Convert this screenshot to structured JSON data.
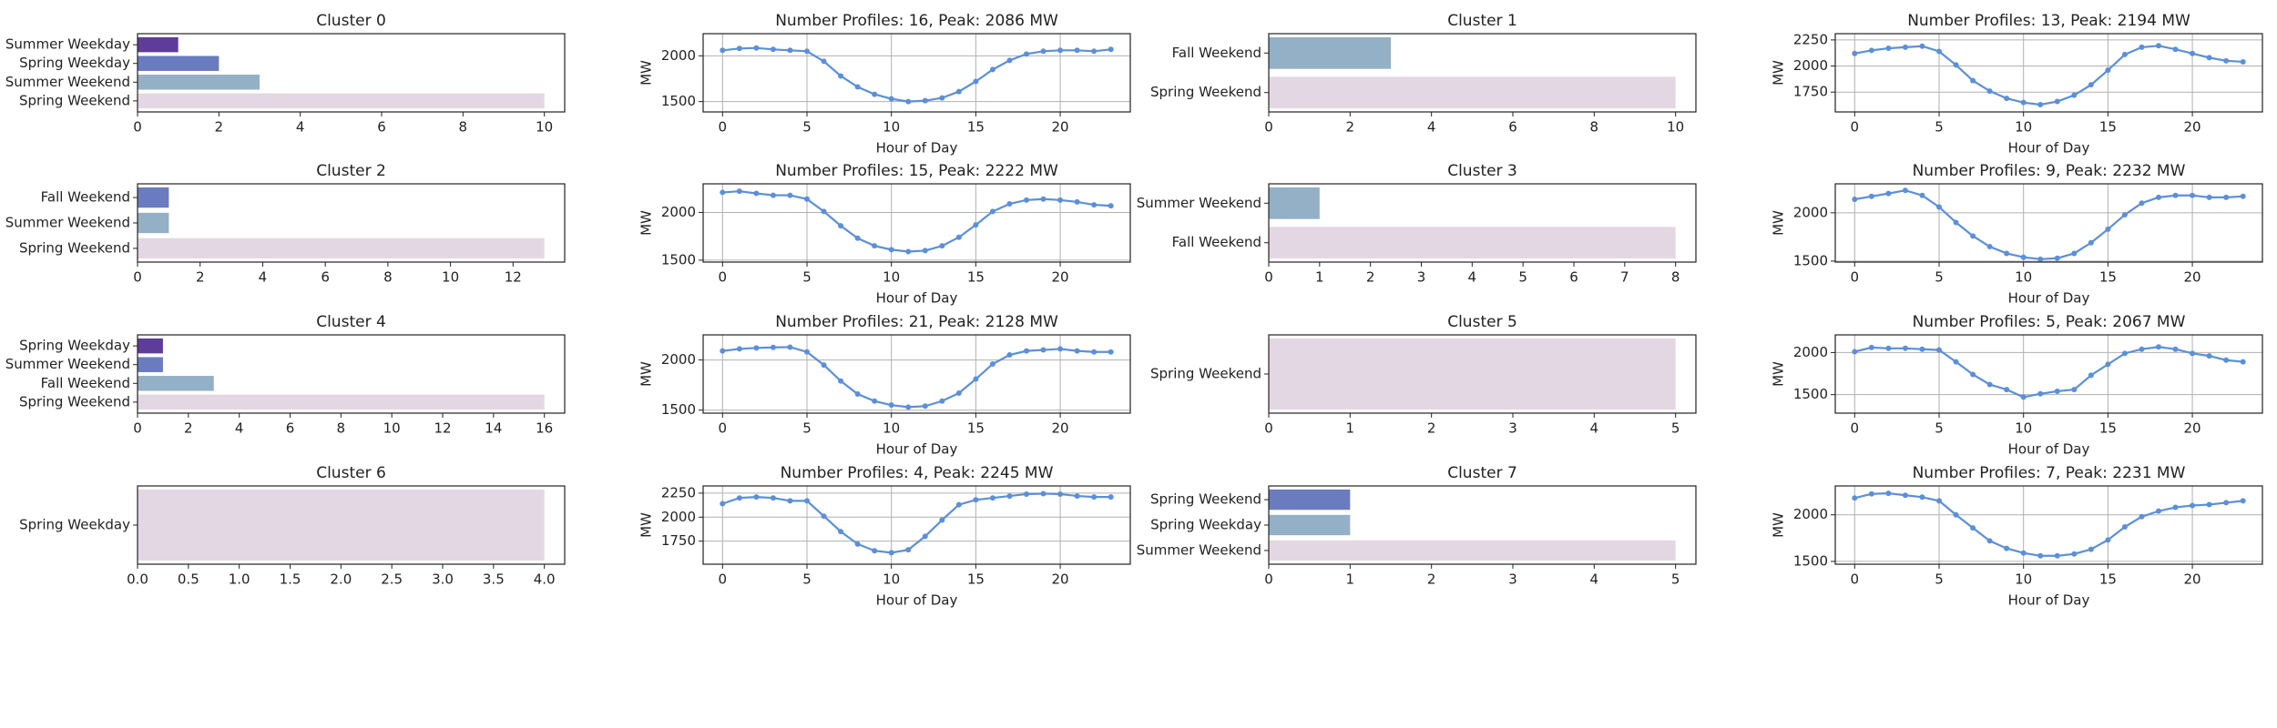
{
  "chart_data": [
    {
      "type": "bar",
      "title": "Cluster 0",
      "categories": [
        "Summer Weekday",
        "Spring Weekday",
        "Summer Weekend",
        "Spring Weekend"
      ],
      "values": [
        1,
        2,
        3,
        10
      ],
      "colors": [
        "#5e3c99",
        "#6a7bbf",
        "#93b0c6",
        "#e3d7e3"
      ],
      "xlim": [
        0,
        10.5
      ],
      "xticks": [
        0,
        2,
        4,
        6,
        8,
        10
      ]
    },
    {
      "type": "line",
      "title": "Number Profiles: 16, Peak: 2086 MW",
      "x": [
        0,
        1,
        2,
        3,
        4,
        5,
        6,
        7,
        8,
        9,
        10,
        11,
        12,
        13,
        14,
        15,
        16,
        17,
        18,
        19,
        20,
        21,
        22,
        23
      ],
      "values": [
        2060,
        2080,
        2086,
        2070,
        2060,
        2050,
        1940,
        1780,
        1660,
        1580,
        1530,
        1500,
        1510,
        1540,
        1610,
        1720,
        1850,
        1950,
        2020,
        2050,
        2060,
        2060,
        2050,
        2070
      ],
      "color": "#5b8fd9",
      "xlim": [
        -1.15,
        24.15
      ],
      "xticks": [
        0,
        5,
        10,
        15,
        20
      ],
      "ylim": [
        1387,
        2242
      ],
      "yticks": [
        1500,
        2000
      ],
      "xlabel": "Hour of Day",
      "ylabel": "MW",
      "grid": true
    },
    {
      "type": "bar",
      "title": "Cluster 1",
      "categories": [
        "Fall Weekend",
        "Spring Weekend"
      ],
      "values": [
        3,
        10
      ],
      "colors": [
        "#93b0c6",
        "#e3d7e3"
      ],
      "xlim": [
        0,
        10.5
      ],
      "xticks": [
        0,
        2,
        4,
        6,
        8,
        10
      ]
    },
    {
      "type": "line",
      "title": "Number Profiles: 13, Peak: 2194 MW",
      "x": [
        0,
        1,
        2,
        3,
        4,
        5,
        6,
        7,
        8,
        9,
        10,
        11,
        12,
        13,
        14,
        15,
        16,
        17,
        18,
        19,
        20,
        21,
        22,
        23
      ],
      "values": [
        2120,
        2150,
        2170,
        2180,
        2190,
        2140,
        2010,
        1860,
        1760,
        1690,
        1650,
        1630,
        1660,
        1720,
        1820,
        1960,
        2110,
        2180,
        2194,
        2160,
        2120,
        2080,
        2050,
        2040
      ],
      "color": "#5b8fd9",
      "xlim": [
        -1.15,
        24.15
      ],
      "xticks": [
        0,
        5,
        10,
        15,
        20
      ],
      "ylim": [
        1560,
        2310
      ],
      "yticks": [
        1750,
        2000,
        2250
      ],
      "xlabel": "Hour of Day",
      "ylabel": "MW",
      "grid": true
    },
    {
      "type": "bar",
      "title": "Cluster 2",
      "categories": [
        "Fall Weekend",
        "Summer Weekend",
        "Spring Weekend"
      ],
      "values": [
        1,
        1,
        13
      ],
      "colors": [
        "#6a7bbf",
        "#93b0c6",
        "#e3d7e3"
      ],
      "xlim": [
        0,
        13.65
      ],
      "xticks": [
        0,
        2,
        4,
        6,
        8,
        10,
        12
      ]
    },
    {
      "type": "line",
      "title": "Number Profiles: 15, Peak: 2222 MW",
      "x": [
        0,
        1,
        2,
        3,
        4,
        5,
        6,
        7,
        8,
        9,
        10,
        11,
        12,
        13,
        14,
        15,
        16,
        17,
        18,
        19,
        20,
        21,
        22,
        23
      ],
      "values": [
        2210,
        2222,
        2200,
        2180,
        2180,
        2140,
        2010,
        1860,
        1730,
        1650,
        1610,
        1590,
        1600,
        1650,
        1740,
        1870,
        2010,
        2090,
        2130,
        2140,
        2130,
        2110,
        2080,
        2070
      ],
      "color": "#5b8fd9",
      "xlim": [
        -1.15,
        24.15
      ],
      "xticks": [
        0,
        5,
        10,
        15,
        20
      ],
      "ylim": [
        1480,
        2300
      ],
      "yticks": [
        1500,
        2000
      ],
      "xlabel": "Hour of Day",
      "ylabel": "MW",
      "grid": true
    },
    {
      "type": "bar",
      "title": "Cluster 3",
      "categories": [
        "Summer Weekend",
        "Fall Weekend"
      ],
      "values": [
        1,
        8
      ],
      "colors": [
        "#93b0c6",
        "#e3d7e3"
      ],
      "xlim": [
        0,
        8.4
      ],
      "xticks": [
        0,
        1,
        2,
        3,
        4,
        5,
        6,
        7,
        8
      ]
    },
    {
      "type": "line",
      "title": "Number Profiles: 9, Peak: 2232 MW",
      "x": [
        0,
        1,
        2,
        3,
        4,
        5,
        6,
        7,
        8,
        9,
        10,
        11,
        12,
        13,
        14,
        15,
        16,
        17,
        18,
        19,
        20,
        21,
        22,
        23
      ],
      "values": [
        2140,
        2170,
        2200,
        2232,
        2180,
        2060,
        1900,
        1760,
        1650,
        1580,
        1540,
        1520,
        1530,
        1580,
        1690,
        1830,
        1980,
        2100,
        2160,
        2180,
        2180,
        2160,
        2160,
        2170
      ],
      "color": "#5b8fd9",
      "xlim": [
        -1.15,
        24.15
      ],
      "xticks": [
        0,
        5,
        10,
        15,
        20
      ],
      "ylim": [
        1490,
        2300
      ],
      "yticks": [
        1500,
        2000
      ],
      "xlabel": "Hour of Day",
      "ylabel": "MW",
      "grid": true
    },
    {
      "type": "bar",
      "title": "Cluster 4",
      "categories": [
        "Spring Weekday",
        "Summer Weekend",
        "Fall Weekend",
        "Spring Weekend"
      ],
      "values": [
        1,
        1,
        3,
        16
      ],
      "colors": [
        "#5e3c99",
        "#6a7bbf",
        "#93b0c6",
        "#e3d7e3"
      ],
      "xlim": [
        0,
        16.8
      ],
      "xticks": [
        0,
        2,
        4,
        6,
        8,
        10,
        12,
        14,
        16
      ]
    },
    {
      "type": "line",
      "title": "Number Profiles: 21, Peak: 2128 MW",
      "x": [
        0,
        1,
        2,
        3,
        4,
        5,
        6,
        7,
        8,
        9,
        10,
        11,
        12,
        13,
        14,
        15,
        16,
        17,
        18,
        19,
        20,
        21,
        22,
        23
      ],
      "values": [
        2090,
        2110,
        2120,
        2125,
        2128,
        2080,
        1950,
        1790,
        1660,
        1590,
        1550,
        1530,
        1540,
        1590,
        1670,
        1810,
        1960,
        2050,
        2090,
        2100,
        2110,
        2090,
        2080,
        2080
      ],
      "color": "#5b8fd9",
      "xlim": [
        -1.15,
        24.15
      ],
      "xticks": [
        0,
        5,
        10,
        15,
        20
      ],
      "ylim": [
        1470,
        2250
      ],
      "yticks": [
        1500,
        2000
      ],
      "xlabel": "Hour of Day",
      "ylabel": "MW",
      "grid": true
    },
    {
      "type": "bar",
      "title": "Cluster 5",
      "categories": [
        "Spring Weekend"
      ],
      "values": [
        5
      ],
      "colors": [
        "#e3d7e3"
      ],
      "xlim": [
        0,
        5.25
      ],
      "xticks": [
        0,
        1,
        2,
        3,
        4,
        5
      ]
    },
    {
      "type": "line",
      "title": "Number Profiles: 5, Peak: 2067 MW",
      "x": [
        0,
        1,
        2,
        3,
        4,
        5,
        6,
        7,
        8,
        9,
        10,
        11,
        12,
        13,
        14,
        15,
        16,
        17,
        18,
        19,
        20,
        21,
        22,
        23
      ],
      "values": [
        2010,
        2060,
        2050,
        2050,
        2040,
        2030,
        1890,
        1740,
        1620,
        1560,
        1470,
        1510,
        1540,
        1560,
        1730,
        1860,
        1990,
        2040,
        2067,
        2040,
        1990,
        1960,
        1910,
        1890
      ],
      "color": "#5b8fd9",
      "xlim": [
        -1.15,
        24.15
      ],
      "xticks": [
        0,
        5,
        10,
        15,
        20
      ],
      "ylim": [
        1280,
        2210
      ],
      "yticks": [
        1500,
        2000
      ],
      "xlabel": "Hour of Day",
      "ylabel": "MW",
      "grid": true
    },
    {
      "type": "bar",
      "title": "Cluster 6",
      "categories": [
        "Spring Weekday"
      ],
      "values": [
        4
      ],
      "colors": [
        "#e3d7e3"
      ],
      "xlim": [
        0,
        4.2
      ],
      "xticks": [
        {
          "value": 0,
          "label": "0.0"
        },
        0.5,
        {
          "value": 1,
          "label": "1.0"
        },
        1.5,
        {
          "value": 2,
          "label": "2.0"
        },
        2.5,
        {
          "value": 3,
          "label": "3.0"
        },
        3.5,
        {
          "value": 4,
          "label": "4.0"
        }
      ]
    },
    {
      "type": "line",
      "title": "Number Profiles: 4, Peak: 2245 MW",
      "x": [
        0,
        1,
        2,
        3,
        4,
        5,
        6,
        7,
        8,
        9,
        10,
        11,
        12,
        13,
        14,
        15,
        16,
        17,
        18,
        19,
        20,
        21,
        22,
        23
      ],
      "values": [
        2140,
        2200,
        2210,
        2200,
        2170,
        2170,
        2010,
        1850,
        1720,
        1650,
        1630,
        1660,
        1800,
        1970,
        2130,
        2180,
        2200,
        2220,
        2240,
        2245,
        2240,
        2220,
        2210,
        2210
      ],
      "color": "#5b8fd9",
      "xlim": [
        -1.15,
        24.15
      ],
      "xticks": [
        0,
        5,
        10,
        15,
        20
      ],
      "ylim": [
        1510,
        2325
      ],
      "yticks": [
        1750,
        2000,
        2250
      ],
      "xlabel": "Hour of Day",
      "ylabel": "MW",
      "grid": true
    },
    {
      "type": "bar",
      "title": "Cluster 7",
      "categories": [
        "Spring Weekend",
        "Spring Weekday",
        "Summer Weekend"
      ],
      "values": [
        1,
        1,
        5
      ],
      "colors": [
        "#6a7bbf",
        "#93b0c6",
        "#e3d7e3"
      ],
      "xlim": [
        0,
        5.25
      ],
      "xticks": [
        0,
        1,
        2,
        3,
        4,
        5
      ]
    },
    {
      "type": "line",
      "title": "Number Profiles: 7, Peak: 2231 MW",
      "x": [
        0,
        1,
        2,
        3,
        4,
        5,
        6,
        7,
        8,
        9,
        10,
        11,
        12,
        13,
        14,
        15,
        16,
        17,
        18,
        19,
        20,
        21,
        22,
        23
      ],
      "values": [
        2180,
        2225,
        2231,
        2210,
        2190,
        2150,
        2000,
        1860,
        1720,
        1640,
        1590,
        1560,
        1560,
        1580,
        1630,
        1730,
        1870,
        1980,
        2040,
        2080,
        2100,
        2110,
        2130,
        2150
      ],
      "color": "#5b8fd9",
      "xlim": [
        -1.15,
        24.15
      ],
      "xticks": [
        0,
        5,
        10,
        15,
        20
      ],
      "ylim": [
        1470,
        2310
      ],
      "yticks": [
        1500,
        2000
      ],
      "xlabel": "Hour of Day",
      "ylabel": "MW",
      "grid": true
    }
  ]
}
